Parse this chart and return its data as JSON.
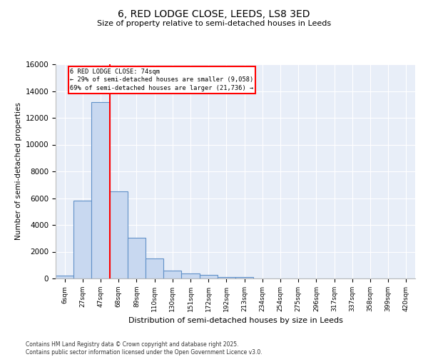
{
  "title_line1": "6, RED LODGE CLOSE, LEEDS, LS8 3ED",
  "title_line2": "Size of property relative to semi-detached houses in Leeds",
  "xlabel": "Distribution of semi-detached houses by size in Leeds",
  "ylabel": "Number of semi-detached properties",
  "categories": [
    "6sqm",
    "27sqm",
    "47sqm",
    "68sqm",
    "89sqm",
    "110sqm",
    "130sqm",
    "151sqm",
    "172sqm",
    "192sqm",
    "213sqm",
    "234sqm",
    "254sqm",
    "275sqm",
    "296sqm",
    "317sqm",
    "337sqm",
    "358sqm",
    "399sqm",
    "420sqm"
  ],
  "values": [
    200,
    5800,
    13200,
    6500,
    3050,
    1500,
    600,
    350,
    250,
    120,
    100,
    0,
    0,
    0,
    0,
    0,
    0,
    0,
    0,
    0
  ],
  "bar_color": "#c8d8f0",
  "bar_edge_color": "#6090c8",
  "red_line_x": 2.5,
  "annotation_text_line1": "6 RED LODGE CLOSE: 74sqm",
  "annotation_text_line2": "← 29% of semi-detached houses are smaller (9,058)",
  "annotation_text_line3": "69% of semi-detached houses are larger (21,736) →",
  "ylim": [
    0,
    16000
  ],
  "yticks": [
    0,
    2000,
    4000,
    6000,
    8000,
    10000,
    12000,
    14000,
    16000
  ],
  "plot_bg_color": "#e8eef8",
  "grid_color": "#ffffff",
  "footer_line1": "Contains HM Land Registry data © Crown copyright and database right 2025.",
  "footer_line2": "Contains public sector information licensed under the Open Government Licence v3.0."
}
